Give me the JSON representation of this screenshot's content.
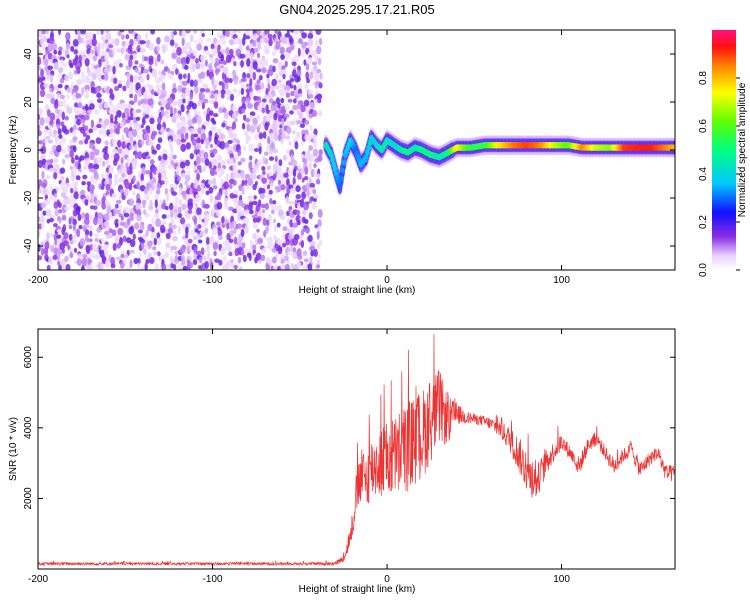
{
  "title": "GN04.2025.295.17.21.R05",
  "chart_data": [
    {
      "type": "heatmap",
      "xlabel": "Height of straight line (km)",
      "ylabel": "Frequency (Hz)",
      "xlim": [
        -200,
        165
      ],
      "ylim": [
        -50,
        50
      ],
      "x_ticks": [
        -200,
        -100,
        0,
        100
      ],
      "y_ticks": [
        -40,
        -20,
        0,
        20,
        40
      ],
      "colorbar": {
        "label": "Normalized spectral amplitude",
        "range": [
          0,
          1
        ],
        "ticks": [
          "0.0",
          "0.2",
          "0.4",
          "0.6",
          "0.8"
        ]
      },
      "noise_region": {
        "x_range": [
          -200,
          -38
        ],
        "freq_range": [
          -50,
          50
        ],
        "amplitude_range": [
          0.0,
          0.2
        ]
      },
      "ridge": [
        {
          "x": -35,
          "freq": 2,
          "amp": 0.45
        },
        {
          "x": -32,
          "freq": -2,
          "amp": 0.4
        },
        {
          "x": -29,
          "freq": -10,
          "amp": 0.35
        },
        {
          "x": -27,
          "freq": -15,
          "amp": 0.3
        },
        {
          "x": -24,
          "freq": -2,
          "amp": 0.35
        },
        {
          "x": -21,
          "freq": 4,
          "amp": 0.4
        },
        {
          "x": -18,
          "freq": 0,
          "amp": 0.3
        },
        {
          "x": -15,
          "freq": -6,
          "amp": 0.35
        },
        {
          "x": -12,
          "freq": -3,
          "amp": 0.35
        },
        {
          "x": -9,
          "freq": 5,
          "amp": 0.4
        },
        {
          "x": -6,
          "freq": 2,
          "amp": 0.4
        },
        {
          "x": -3,
          "freq": 0,
          "amp": 0.45
        },
        {
          "x": 0,
          "freq": 4,
          "amp": 0.45
        },
        {
          "x": 4,
          "freq": 2,
          "amp": 0.4
        },
        {
          "x": 8,
          "freq": 0,
          "amp": 0.45
        },
        {
          "x": 12,
          "freq": -1,
          "amp": 0.5
        },
        {
          "x": 16,
          "freq": 1,
          "amp": 0.45
        },
        {
          "x": 20,
          "freq": 0,
          "amp": 0.5
        },
        {
          "x": 25,
          "freq": -2,
          "amp": 0.5
        },
        {
          "x": 30,
          "freq": -3,
          "amp": 0.45
        },
        {
          "x": 35,
          "freq": -1,
          "amp": 0.5
        },
        {
          "x": 40,
          "freq": 1,
          "amp": 0.75
        },
        {
          "x": 48,
          "freq": 1,
          "amp": 0.55
        },
        {
          "x": 56,
          "freq": 2,
          "amp": 0.55
        },
        {
          "x": 64,
          "freq": 2,
          "amp": 0.75
        },
        {
          "x": 72,
          "freq": 2,
          "amp": 0.85
        },
        {
          "x": 80,
          "freq": 2,
          "amp": 0.9
        },
        {
          "x": 88,
          "freq": 2,
          "amp": 0.85
        },
        {
          "x": 96,
          "freq": 2,
          "amp": 0.7
        },
        {
          "x": 104,
          "freq": 2,
          "amp": 0.6
        },
        {
          "x": 112,
          "freq": 1,
          "amp": 0.85
        },
        {
          "x": 120,
          "freq": 1,
          "amp": 0.7
        },
        {
          "x": 128,
          "freq": 1,
          "amp": 0.65
        },
        {
          "x": 136,
          "freq": 1,
          "amp": 0.9
        },
        {
          "x": 144,
          "freq": 1,
          "amp": 0.92
        },
        {
          "x": 152,
          "freq": 1,
          "amp": 0.92
        },
        {
          "x": 160,
          "freq": 1,
          "amp": 0.85
        },
        {
          "x": 165,
          "freq": 1,
          "amp": 0.8
        }
      ]
    },
    {
      "type": "line",
      "xlabel": "Height of straight line (km)",
      "ylabel": "SNR (10 * v/v)",
      "xlim": [
        -200,
        165
      ],
      "ylim": [
        0,
        6800
      ],
      "x_ticks": [
        -200,
        -100,
        0,
        100
      ],
      "y_ticks": [
        2000,
        4000,
        6000
      ],
      "series": [
        {
          "color": "#ee3333",
          "x": [
            -200,
            -180,
            -160,
            -140,
            -120,
            -100,
            -80,
            -60,
            -40,
            -30,
            -25,
            -22,
            -20,
            -18,
            -15,
            -12,
            -10,
            -5,
            0,
            5,
            10,
            15,
            20,
            25,
            30,
            35,
            40,
            45,
            50,
            55,
            60,
            65,
            70,
            75,
            80,
            85,
            90,
            95,
            100,
            105,
            110,
            115,
            120,
            125,
            130,
            135,
            140,
            145,
            150,
            155,
            160,
            165
          ],
          "y": [
            150,
            150,
            150,
            150,
            150,
            150,
            150,
            150,
            150,
            150,
            300,
            700,
            1200,
            2000,
            2600,
            2500,
            2800,
            3000,
            3100,
            3200,
            3400,
            3600,
            3800,
            4200,
            4600,
            4200,
            4400,
            4300,
            4250,
            4200,
            4100,
            3950,
            3700,
            3300,
            2800,
            2400,
            2900,
            3300,
            3600,
            3300,
            2900,
            3500,
            3700,
            3300,
            2900,
            3200,
            3400,
            2800,
            3100,
            3300,
            2700,
            2700
          ],
          "noise": [
            40,
            40,
            40,
            40,
            40,
            40,
            40,
            40,
            40,
            50,
            100,
            200,
            400,
            600,
            800,
            900,
            900,
            1000,
            1100,
            1200,
            1300,
            1300,
            1300,
            1200,
            1100,
            700,
            300,
            200,
            150,
            150,
            200,
            250,
            350,
            500,
            600,
            500,
            400,
            300,
            250,
            200,
            300,
            200,
            200,
            200,
            250,
            200,
            200,
            250,
            200,
            200,
            250,
            250
          ]
        }
      ]
    }
  ]
}
